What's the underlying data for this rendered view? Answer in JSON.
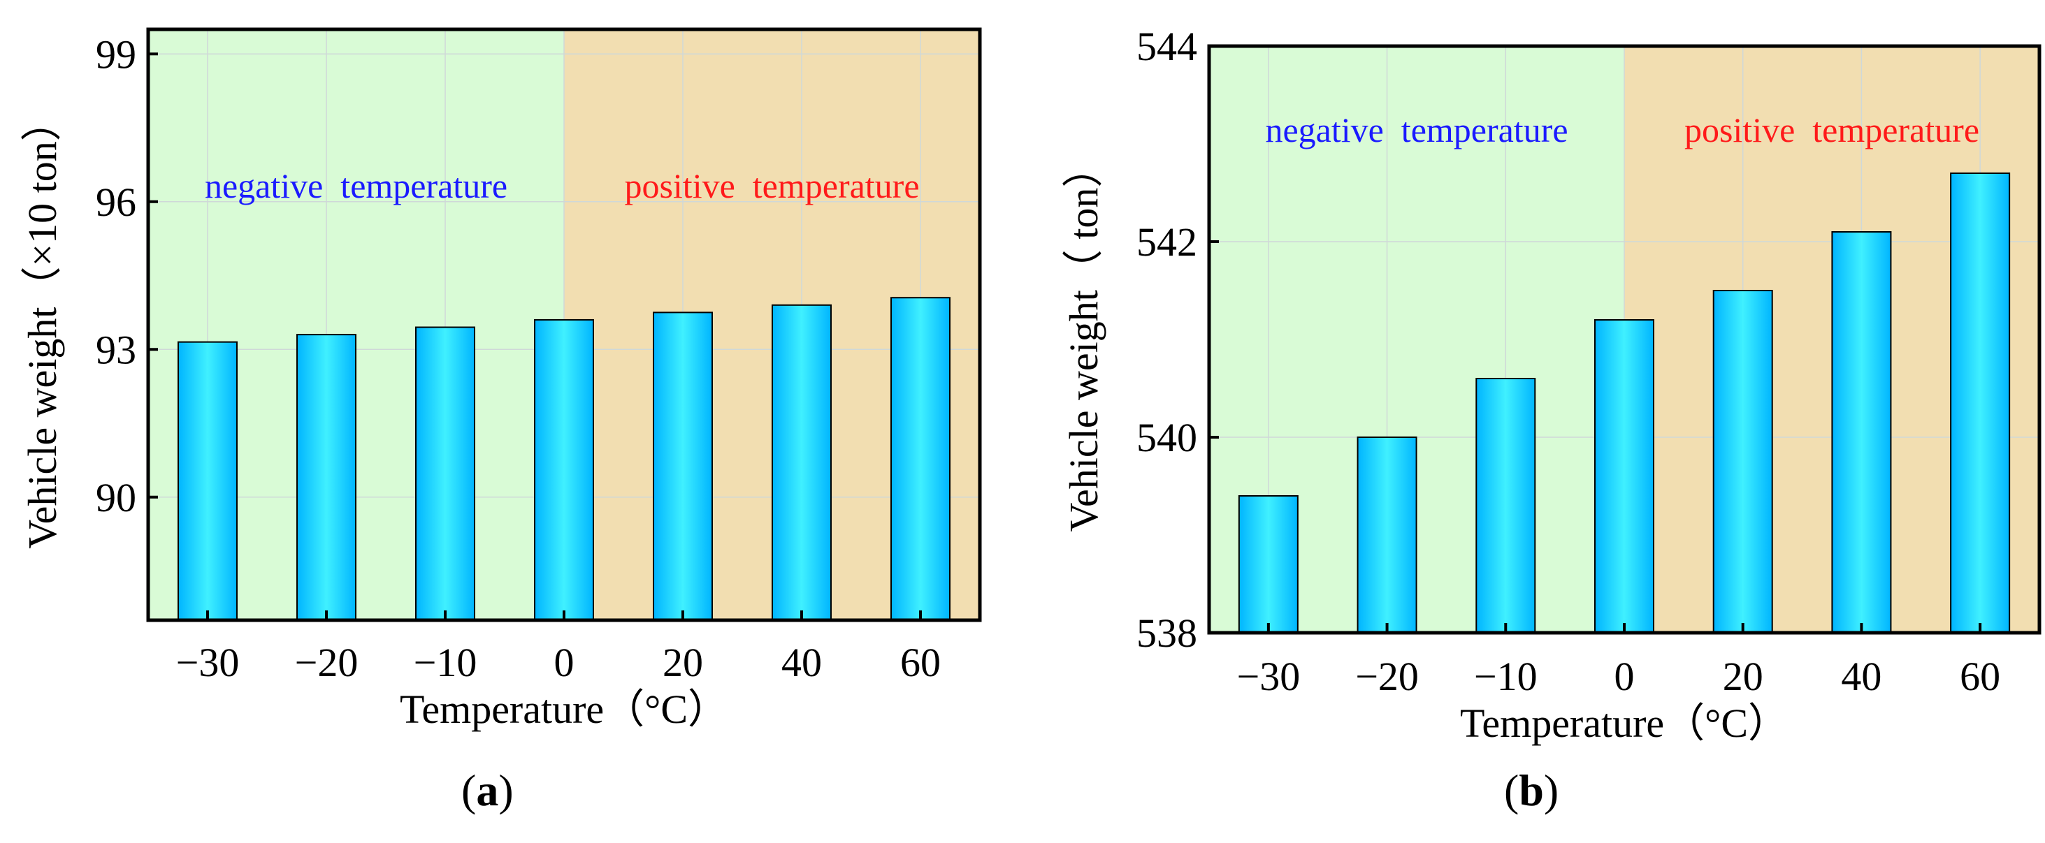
{
  "chart_data": [
    {
      "type": "bar",
      "panel": "(a)",
      "categories": [
        "−30",
        "−20",
        "−10",
        "0",
        "20",
        "40",
        "60"
      ],
      "values": [
        93.15,
        93.3,
        93.45,
        93.6,
        93.75,
        93.9,
        94.05
      ],
      "xlabel": "Temperature（°C）",
      "ylabel": "Vehicle weight（×10 ton）",
      "ylim": [
        87.5,
        99.5
      ],
      "yticks": [
        "90",
        "93",
        "96",
        "99"
      ],
      "ytick_values": [
        90,
        93,
        96,
        99
      ],
      "grid": true,
      "regions": [
        {
          "label": "negative  temperature",
          "from_index": 0,
          "to_index": 3,
          "fill": "#d9fbd6",
          "text_color": "#1a1aff"
        },
        {
          "label": "positive  temperature",
          "from_index": 3,
          "to_index": 6,
          "fill": "#f2deb1",
          "text_color": "#ff1a1a"
        }
      ]
    },
    {
      "type": "bar",
      "panel": "(b)",
      "categories": [
        "−30",
        "−20",
        "−10",
        "0",
        "20",
        "40",
        "60"
      ],
      "values": [
        539.4,
        540.0,
        540.6,
        541.2,
        541.5,
        542.1,
        542.7
      ],
      "xlabel": "Temperature（°C）",
      "ylabel": "Vehicle weight（ ton）",
      "ylim": [
        538,
        544
      ],
      "yticks": [
        "538",
        "540",
        "542",
        "544"
      ],
      "ytick_values": [
        538,
        540,
        542,
        544
      ],
      "grid": true,
      "regions": [
        {
          "label": "negative  temperature",
          "from_index": 0,
          "to_index": 3,
          "fill": "#d9fbd6",
          "text_color": "#1a1aff"
        },
        {
          "label": "positive  temperature",
          "from_index": 3,
          "to_index": 6,
          "fill": "#f2deb1",
          "text_color": "#ff1a1a"
        }
      ]
    }
  ],
  "colors": {
    "bar_edge": "#00bfff",
    "bar_center": "#33ecff",
    "bar_outline": "#000000",
    "grid": "#cfd8d8"
  }
}
